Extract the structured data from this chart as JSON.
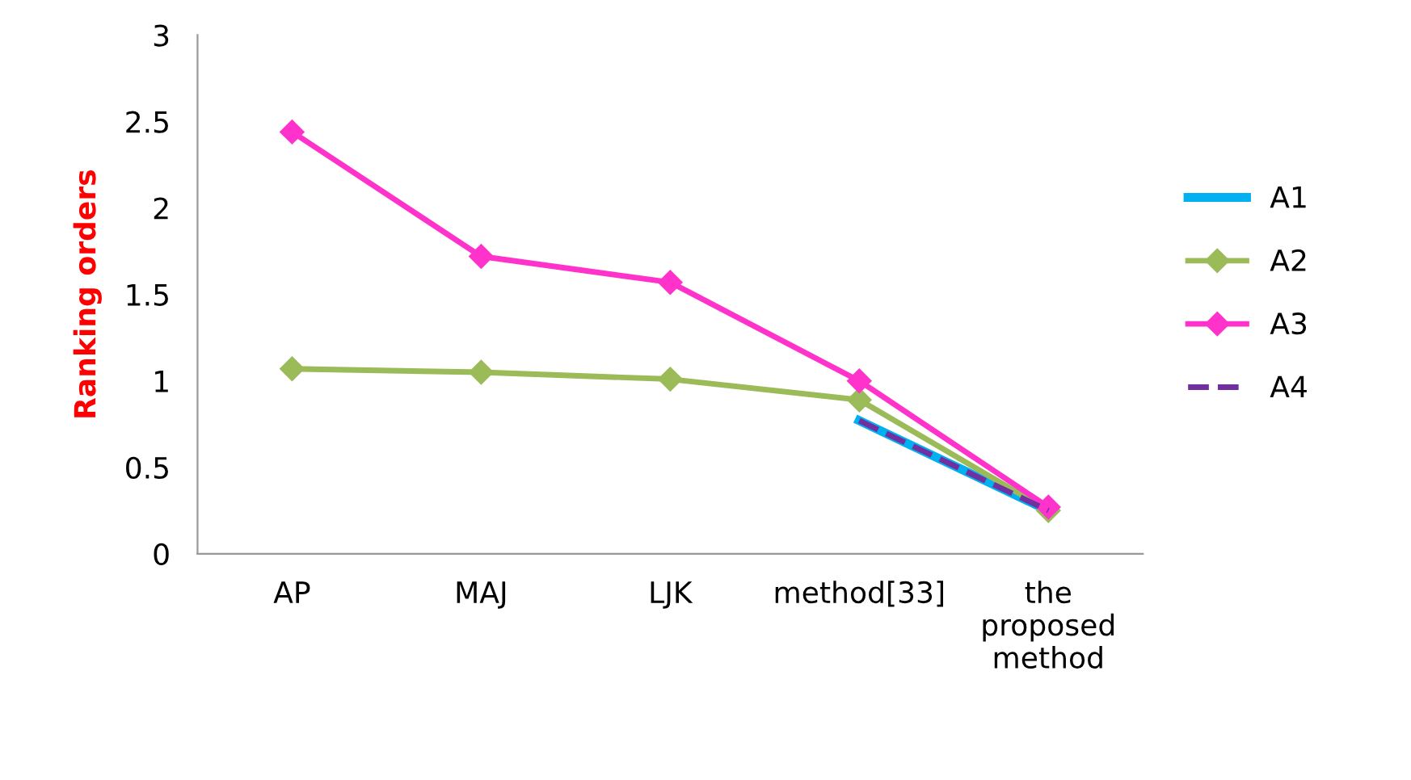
{
  "chart_data": {
    "type": "line",
    "ylabel": "Ranking orders",
    "categories": [
      "AP",
      "MAJ",
      "LJK",
      "method[33]",
      "the\nproposed\nmethod"
    ],
    "series": [
      {
        "name": "A1",
        "color": "#00b0f0",
        "values": [
          null,
          null,
          null,
          0.77,
          0.25
        ],
        "marker": "none",
        "line_style": "solid"
      },
      {
        "name": "A2",
        "color": "#9bbb59",
        "values": [
          1.07,
          1.05,
          1.01,
          0.89,
          0.25
        ],
        "marker": "diamond",
        "line_style": "solid"
      },
      {
        "name": "A3",
        "color": "#ff33cc",
        "values": [
          2.44,
          1.72,
          1.57,
          1.0,
          0.27
        ],
        "marker": "diamond",
        "line_style": "solid"
      },
      {
        "name": "A4",
        "color": "#7030a0",
        "values": [
          null,
          null,
          null,
          0.77,
          0.25
        ],
        "marker": "none",
        "line_style": "dashed"
      }
    ],
    "ylim": [
      0,
      3
    ],
    "yticks": [
      0,
      0.5,
      1,
      1.5,
      2,
      2.5,
      3
    ],
    "grid": false,
    "legend": "right"
  }
}
